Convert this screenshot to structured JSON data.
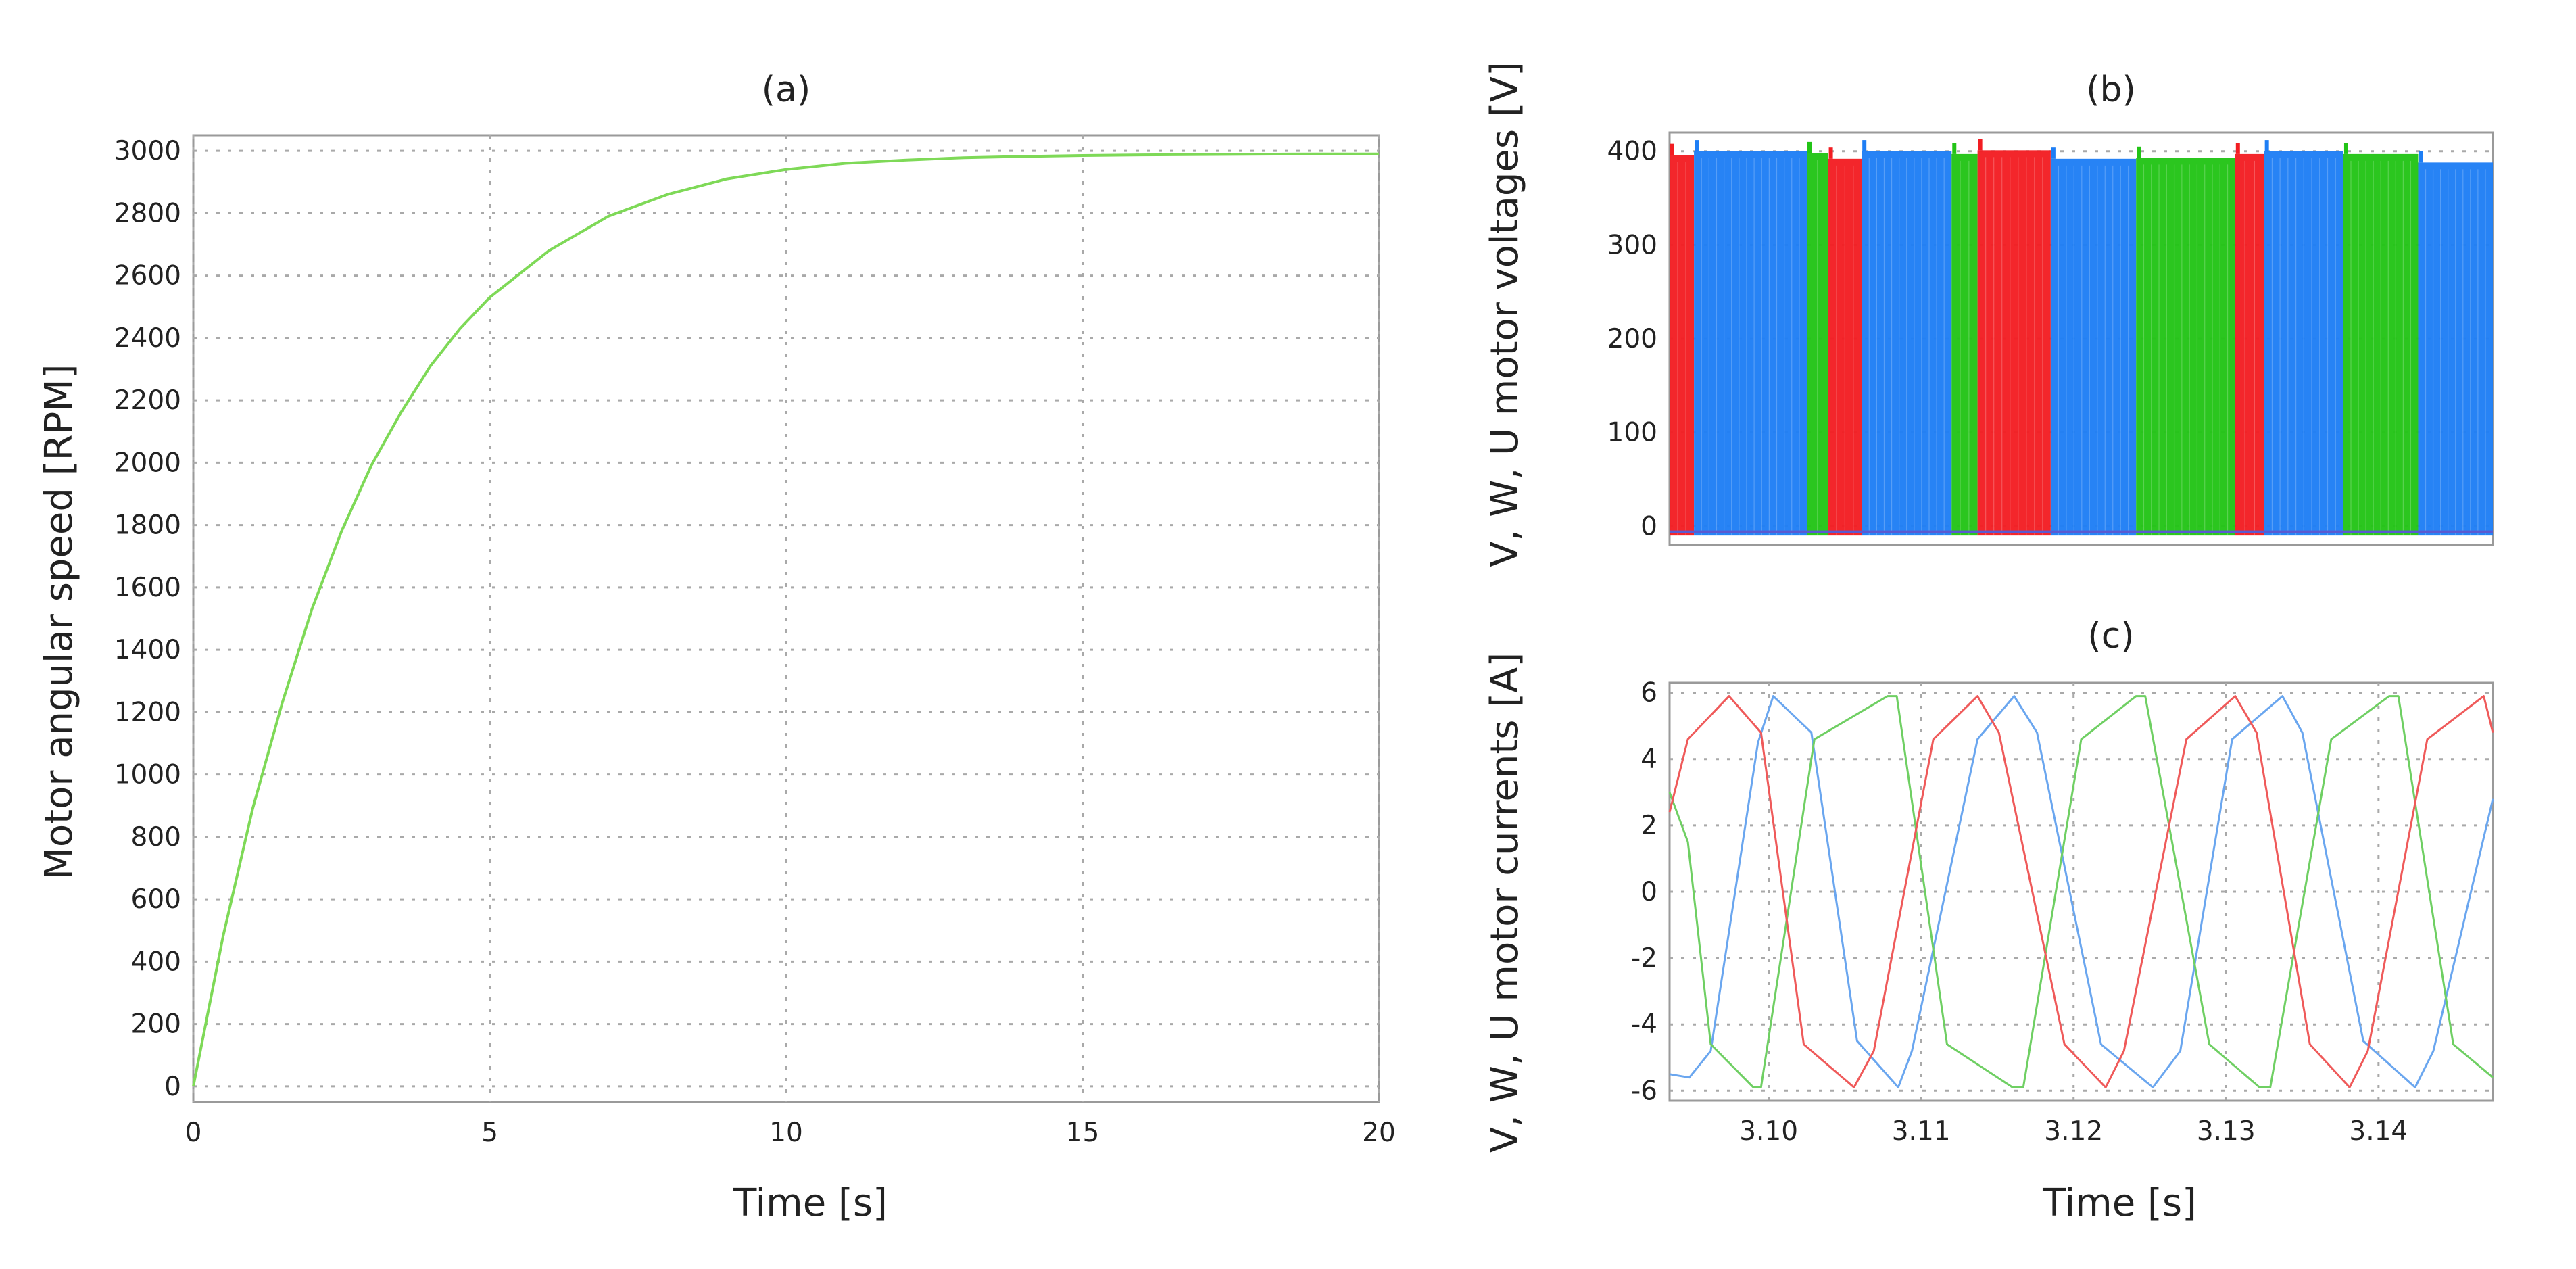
{
  "chart_data": [
    {
      "id": "a",
      "type": "line",
      "title": "(a)",
      "xlabel": "Time [s]",
      "ylabel": "Motor angular speed [RPM]",
      "xlim": [
        0,
        20
      ],
      "ylim": [
        -50,
        3050
      ],
      "xticks": [
        0,
        5,
        10,
        15,
        20
      ],
      "yticks": [
        0,
        200,
        400,
        600,
        800,
        1000,
        1200,
        1400,
        1600,
        1800,
        2000,
        2200,
        2400,
        2600,
        2800,
        3000
      ],
      "grid": true,
      "series": [
        {
          "name": "Motor angular speed",
          "color": "#7ed957",
          "x": [
            0,
            0.5,
            1,
            1.5,
            2,
            2.5,
            3,
            3.5,
            4,
            4.5,
            5,
            6,
            7,
            8,
            9,
            10,
            11,
            12,
            13,
            14,
            15,
            16,
            17,
            18,
            19,
            20
          ],
          "y": [
            0,
            480,
            890,
            1230,
            1530,
            1780,
            1990,
            2160,
            2310,
            2430,
            2530,
            2680,
            2790,
            2860,
            2910,
            2940,
            2960,
            2970,
            2978,
            2982,
            2985,
            2987,
            2988,
            2989,
            2990,
            2990
          ]
        }
      ]
    },
    {
      "id": "b",
      "type": "area",
      "title": "(b)",
      "xlabel": "",
      "ylabel": "V, W, U motor voltages [V]",
      "xlim": [
        3.0935,
        3.1475
      ],
      "ylim": [
        -20,
        420
      ],
      "yticks": [
        0,
        100,
        200,
        300,
        400
      ],
      "grid": true,
      "switching_bands": {
        "x_start": [
          3.0935,
          3.0951,
          3.1025,
          3.1039,
          3.1061,
          3.112,
          3.1137,
          3.1185,
          3.1241,
          3.1306,
          3.1325,
          3.1377,
          3.1426
        ],
        "x_end": [
          3.0951,
          3.1025,
          3.1039,
          3.1061,
          3.112,
          3.1137,
          3.1185,
          3.1241,
          3.1306,
          3.1325,
          3.1377,
          3.1426,
          3.1475
        ],
        "phase": [
          "U",
          "V",
          "W",
          "U",
          "V",
          "W",
          "U",
          "V",
          "W",
          "U",
          "V",
          "W",
          "V"
        ],
        "peak": [
          396,
          400,
          398,
          392,
          400,
          397,
          401,
          392,
          393,
          397,
          400,
          397,
          388
        ]
      },
      "series": [
        {
          "name": "V",
          "color": "#1e7ef5"
        },
        {
          "name": "W",
          "color": "#22c416"
        },
        {
          "name": "U",
          "color": "#f21d22"
        }
      ]
    },
    {
      "id": "c",
      "type": "line",
      "title": "(c)",
      "xlabel": "Time [s]",
      "ylabel": "V, W, U motor currents [A]",
      "xlim": [
        3.0935,
        3.1475
      ],
      "ylim": [
        -6.3,
        6.3
      ],
      "xticks": [
        3.1,
        3.11,
        3.12,
        3.13,
        3.14
      ],
      "xtick_labels": [
        "3.10",
        "3.11",
        "3.12",
        "3.13",
        "3.14"
      ],
      "yticks": [
        -6,
        -4,
        -2,
        0,
        2,
        4,
        6
      ],
      "grid": true,
      "series": [
        {
          "name": "V",
          "color": "#6aa6ef",
          "x": [
            3.0935,
            3.0948,
            3.0962,
            3.0993,
            3.1003,
            3.1028,
            3.1058,
            3.1085,
            3.1094,
            3.1137,
            3.1161,
            3.1176,
            3.1218,
            3.1252,
            3.127,
            3.1304,
            3.1337,
            3.135,
            3.139,
            3.1424,
            3.1436,
            3.1475
          ],
          "y": [
            -5.5,
            -5.6,
            -4.8,
            4.5,
            5.9,
            4.8,
            -4.5,
            -5.9,
            -4.8,
            4.6,
            5.9,
            4.8,
            -4.6,
            -5.9,
            -4.8,
            4.6,
            5.9,
            4.8,
            -4.5,
            -5.9,
            -4.8,
            2.8
          ]
        },
        {
          "name": "W",
          "color": "#6fcf63",
          "x": [
            3.0935,
            3.0947,
            3.0962,
            3.099,
            3.0995,
            3.103,
            3.1078,
            3.1084,
            3.1117,
            3.116,
            3.1167,
            3.1205,
            3.1241,
            3.1247,
            3.1289,
            3.1322,
            3.1329,
            3.1369,
            3.1407,
            3.1413,
            3.1449,
            3.1475
          ],
          "y": [
            3.0,
            1.5,
            -4.6,
            -5.9,
            -5.9,
            4.6,
            5.9,
            5.9,
            -4.6,
            -5.9,
            -5.9,
            4.6,
            5.9,
            5.9,
            -4.6,
            -5.9,
            -5.9,
            4.6,
            5.9,
            5.9,
            -4.6,
            -5.6
          ]
        },
        {
          "name": "U",
          "color": "#ef5a5a",
          "x": [
            3.0935,
            3.0947,
            3.0974,
            3.0995,
            3.1023,
            3.1056,
            3.1069,
            3.1108,
            3.1137,
            3.1151,
            3.1194,
            3.1221,
            3.1233,
            3.1274,
            3.1306,
            3.132,
            3.1355,
            3.1381,
            3.1393,
            3.1432,
            3.1469,
            3.1475
          ],
          "y": [
            2.4,
            4.6,
            5.9,
            4.8,
            -4.6,
            -5.9,
            -4.8,
            4.6,
            5.9,
            4.8,
            -4.6,
            -5.9,
            -4.8,
            4.6,
            5.9,
            4.8,
            -4.6,
            -5.9,
            -4.8,
            4.6,
            5.9,
            4.8
          ]
        }
      ]
    }
  ]
}
